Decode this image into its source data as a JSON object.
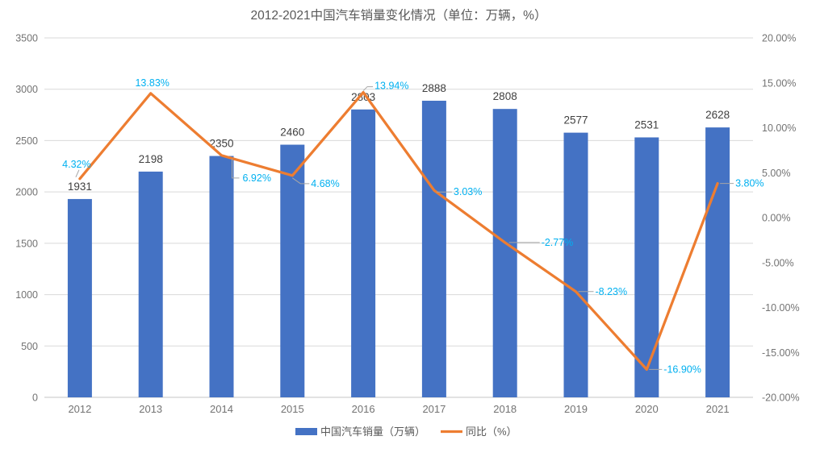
{
  "chart_data": {
    "type": "combo",
    "title": "2012-2021中国汽车销量变化情况（单位：万辆，%）",
    "categories": [
      "2012",
      "2013",
      "2014",
      "2015",
      "2016",
      "2017",
      "2018",
      "2019",
      "2020",
      "2021"
    ],
    "series": [
      {
        "name": "中国汽车销量（万辆）",
        "type": "bar",
        "axis": "left",
        "color": "#4472C4",
        "values": [
          1931,
          2198,
          2350,
          2460,
          2803,
          2888,
          2808,
          2577,
          2531,
          2628
        ],
        "labels": [
          "1931",
          "2198",
          "2350",
          "2460",
          "2803",
          "2888",
          "2808",
          "2577",
          "2531",
          "2628"
        ],
        "label_color": "#404040"
      },
      {
        "name": "同比（%）",
        "type": "line",
        "axis": "right",
        "color": "#ED7D31",
        "values": [
          4.32,
          13.83,
          6.92,
          4.68,
          13.94,
          3.03,
          -2.77,
          -8.23,
          -16.9,
          3.8
        ],
        "labels": [
          "4.32%",
          "13.83%",
          "6.92%",
          "4.68%",
          "13.94%",
          "3.03%",
          "-2.77%",
          "-8.23%",
          "-16.90%",
          "3.80%"
        ],
        "label_color": "#00B0F0"
      }
    ],
    "left_axis": {
      "min": 0,
      "max": 3500,
      "step": 500,
      "tick_labels": [
        "0",
        "500",
        "1000",
        "1500",
        "2000",
        "2500",
        "3000",
        "3500"
      ]
    },
    "right_axis": {
      "min": -20,
      "max": 20,
      "step": 5,
      "tick_labels": [
        "-20.00%",
        "-15.00%",
        "-10.00%",
        "-5.00%",
        "0.00%",
        "5.00%",
        "10.00%",
        "15.00%",
        "20.00%"
      ]
    },
    "grid": true,
    "legend_position": "bottom"
  },
  "legend": {
    "bar_label": "中国汽车销量（万辆）",
    "line_label": "同比（%）"
  },
  "style": {
    "grid_color": "#D9D9D9",
    "axis_line_color": "#C6C6C6",
    "tick_color": "#737373",
    "title_color": "#595959",
    "leader_color": "#A6A6A6",
    "legend_text_color": "#595959"
  }
}
